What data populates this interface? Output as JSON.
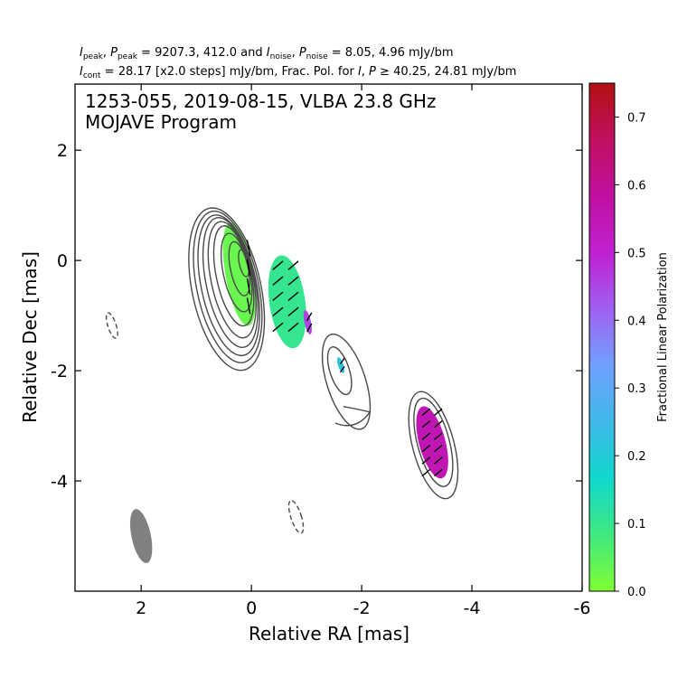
{
  "header": {
    "line1": {
      "i_peak_sym": "I",
      "i_peak_sub": "peak",
      "p_peak_sym": "P",
      "p_peak_sub": "peak",
      "peak_values": " = 9207.3, 412.0 and ",
      "i_noise_sym": "I",
      "i_noise_sub": "noise",
      "p_noise_sym": "P",
      "p_noise_sub": "noise",
      "noise_values": " = 8.05, 4.96 mJy/bm"
    },
    "line2": {
      "i_cont_sym": "I",
      "i_cont_sub": "cont",
      "cont_values": " = 28.17 [x2.0 steps] mJy/bm, Frac. Pol. for ",
      "i_sym": "I",
      "p_sym": "P",
      "geq": " ≥ ",
      "threshold_values": "40.25, 24.81 mJy/bm"
    }
  },
  "chart_data": {
    "type": "heatmap",
    "title_line1": "1253-055, 2019-08-15, VLBA 23.8 GHz",
    "title_line2": "MOJAVE Program",
    "xlabel": "Relative RA [mas]",
    "ylabel": "Relative Dec [mas]",
    "xlim": [
      3.2,
      -6.0
    ],
    "ylim": [
      -6.0,
      3.2
    ],
    "x_ticks": [
      2,
      0,
      -2,
      -4,
      -6
    ],
    "y_ticks": [
      2,
      0,
      -2,
      -4
    ],
    "colorbar": {
      "label": "Fractional Linear Polarization",
      "range": [
        0.0,
        0.75
      ],
      "ticks": [
        0.0,
        0.1,
        0.2,
        0.3,
        0.4,
        0.5,
        0.6,
        0.7
      ],
      "colors": [
        "#80ff33",
        "#40e880",
        "#10d8cc",
        "#40b8e8",
        "#70a0ff",
        "#a060f0",
        "#c020d0",
        "#c010a0",
        "#c01060",
        "#b01010"
      ]
    },
    "beam": {
      "ra": 2.0,
      "dec": -5.0,
      "major": 1.0,
      "minor": 0.35,
      "pa_deg": -12
    },
    "negative_contours": [
      {
        "ra": 2.53,
        "dec": -1.18,
        "major": 0.48,
        "minor": 0.15,
        "pa_deg": -18
      },
      {
        "ra": -0.81,
        "dec": -4.65,
        "major": 0.62,
        "minor": 0.19,
        "pa_deg": -18
      }
    ],
    "core_contours": [
      {
        "ra": 0.45,
        "dec": -0.52,
        "major": 3.0,
        "minor": 1.25,
        "pa_deg": -12
      },
      {
        "ra": 0.43,
        "dec": -0.48,
        "major": 2.8,
        "minor": 1.12,
        "pa_deg": -12
      },
      {
        "ra": 0.41,
        "dec": -0.45,
        "major": 2.6,
        "minor": 1.0,
        "pa_deg": -12
      },
      {
        "ra": 0.38,
        "dec": -0.4,
        "major": 2.4,
        "minor": 0.88,
        "pa_deg": -12
      },
      {
        "ra": 0.35,
        "dec": -0.35,
        "major": 2.15,
        "minor": 0.76,
        "pa_deg": -12
      },
      {
        "ra": 0.32,
        "dec": -0.28,
        "major": 1.85,
        "minor": 0.63,
        "pa_deg": -12
      },
      {
        "ra": 0.27,
        "dec": -0.22,
        "major": 1.45,
        "minor": 0.48,
        "pa_deg": -12
      },
      {
        "ra": 0.22,
        "dec": -0.15,
        "major": 1.0,
        "minor": 0.32,
        "pa_deg": -12
      },
      {
        "ra": 0.14,
        "dec": -0.05,
        "major": 0.5,
        "minor": 0.16,
        "pa_deg": -12
      }
    ],
    "jet_contours": [
      {
        "ra": -1.72,
        "dec": -2.2,
        "major": 1.8,
        "minor": 0.7,
        "pa_deg": -18
      },
      {
        "ra": -1.6,
        "dec": -2.0,
        "major": 0.9,
        "minor": 0.35,
        "pa_deg": -18
      }
    ],
    "jet_tail": {
      "ra": -2.15,
      "dec": -2.75
    },
    "knot_contours": [
      {
        "ra": -3.3,
        "dec": -3.35,
        "major": 2.0,
        "minor": 0.75,
        "pa_deg": -15
      },
      {
        "ra": -3.3,
        "dec": -3.3,
        "major": 1.65,
        "minor": 0.58,
        "pa_deg": -15
      }
    ],
    "polarization_regions": [
      {
        "ra": 0.22,
        "dec": -0.25,
        "major": 1.9,
        "minor": 0.5,
        "pa_deg": -10,
        "frac_pol": 0.03
      },
      {
        "ra": -0.65,
        "dec": -0.75,
        "major": 1.7,
        "minor": 0.65,
        "pa_deg": -8,
        "frac_pol": 0.1
      },
      {
        "ra": -1.02,
        "dec": -1.12,
        "major": 0.45,
        "minor": 0.12,
        "pa_deg": -12,
        "frac_pol": 0.45
      },
      {
        "ra": -1.62,
        "dec": -1.9,
        "major": 0.3,
        "minor": 0.1,
        "pa_deg": -18,
        "frac_pol": 0.22
      },
      {
        "ra": -3.28,
        "dec": -3.3,
        "major": 1.35,
        "minor": 0.48,
        "pa_deg": -15,
        "frac_pol": 0.55
      }
    ],
    "evpa_groups": [
      {
        "ra": 0.05,
        "dec": -0.3,
        "rows": 4,
        "cols": 1,
        "step": 0.35,
        "angle_deg": -80
      },
      {
        "ra": -0.62,
        "dec": -0.65,
        "rows": 5,
        "cols": 2,
        "step": 0.28,
        "angle_deg": 40
      },
      {
        "ra": -1.05,
        "dec": -1.12,
        "rows": 2,
        "cols": 1,
        "step": 0.2,
        "angle_deg": 60
      },
      {
        "ra": -1.65,
        "dec": -1.9,
        "rows": 2,
        "cols": 1,
        "step": 0.15,
        "angle_deg": 55
      },
      {
        "ra": -3.28,
        "dec": -3.3,
        "rows": 6,
        "cols": 2,
        "step": 0.22,
        "angle_deg": 40
      }
    ]
  }
}
